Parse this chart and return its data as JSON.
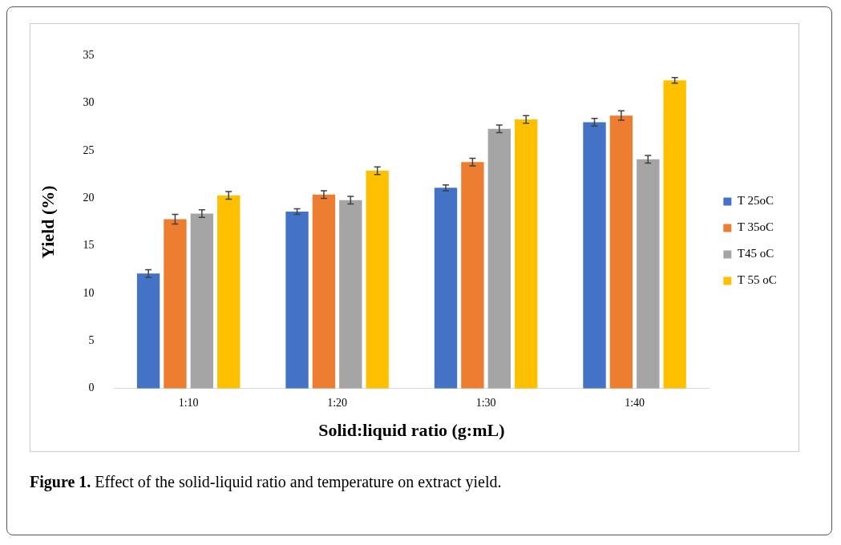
{
  "chart_data": {
    "type": "bar",
    "xlabel": "Solid:liquid ratio (g:mL)",
    "ylabel": "Yield (%)",
    "categories": [
      "1:10",
      "1:20",
      "1:30",
      "1:40"
    ],
    "series": [
      {
        "name": "T 25oC",
        "color": "#4472c4",
        "values": [
          12.1,
          18.6,
          21.1,
          28.0
        ],
        "errors": [
          0.4,
          0.3,
          0.3,
          0.4
        ]
      },
      {
        "name": "T 35oC",
        "color": "#ed7d31",
        "values": [
          17.8,
          20.4,
          23.8,
          28.7
        ],
        "errors": [
          0.5,
          0.4,
          0.4,
          0.5
        ]
      },
      {
        "name": "T45 oC",
        "color": "#a5a5a5",
        "values": [
          18.4,
          19.8,
          27.3,
          24.1
        ],
        "errors": [
          0.4,
          0.4,
          0.4,
          0.4
        ]
      },
      {
        "name": "T 55 oC",
        "color": "#ffc000",
        "values": [
          20.3,
          22.9,
          28.3,
          32.4
        ],
        "errors": [
          0.4,
          0.4,
          0.4,
          0.3
        ]
      }
    ],
    "ylim": [
      0,
      35
    ],
    "yticks": [
      0,
      5,
      10,
      15,
      20,
      25,
      30,
      35
    ],
    "grid": false,
    "legend": "right",
    "annotations": [
      "Figure 1. Effect of the solid-liquid ratio and temperature on extract yield."
    ]
  }
}
